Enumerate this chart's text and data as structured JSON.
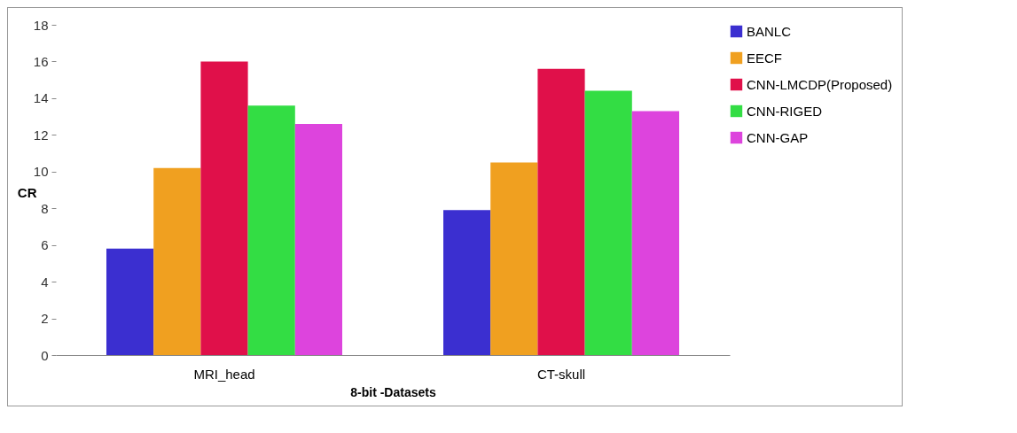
{
  "chart_data": {
    "type": "bar",
    "xlabel": "8-bit -Datasets",
    "ylabel": "CR",
    "categories": [
      "MRI_head",
      "CT-skull"
    ],
    "series": [
      {
        "name": "BANLC",
        "color": "#3b2fd0",
        "values": [
          5.8,
          7.9
        ]
      },
      {
        "name": "EECF",
        "color": "#f0a020",
        "values": [
          10.2,
          10.5
        ]
      },
      {
        "name": "CNN-LMCDP(Proposed)",
        "color": "#e0104a",
        "values": [
          16.0,
          15.6
        ]
      },
      {
        "name": "CNN-RIGED",
        "color": "#33dd44",
        "values": [
          13.6,
          14.4
        ]
      },
      {
        "name": "CNN-GAP",
        "color": "#dd44dd",
        "values": [
          12.6,
          13.3
        ]
      }
    ],
    "ylim": [
      0,
      18
    ],
    "yticks": [
      0,
      2,
      4,
      6,
      8,
      10,
      12,
      14,
      16,
      18
    ],
    "grid": false,
    "legend": "right"
  }
}
